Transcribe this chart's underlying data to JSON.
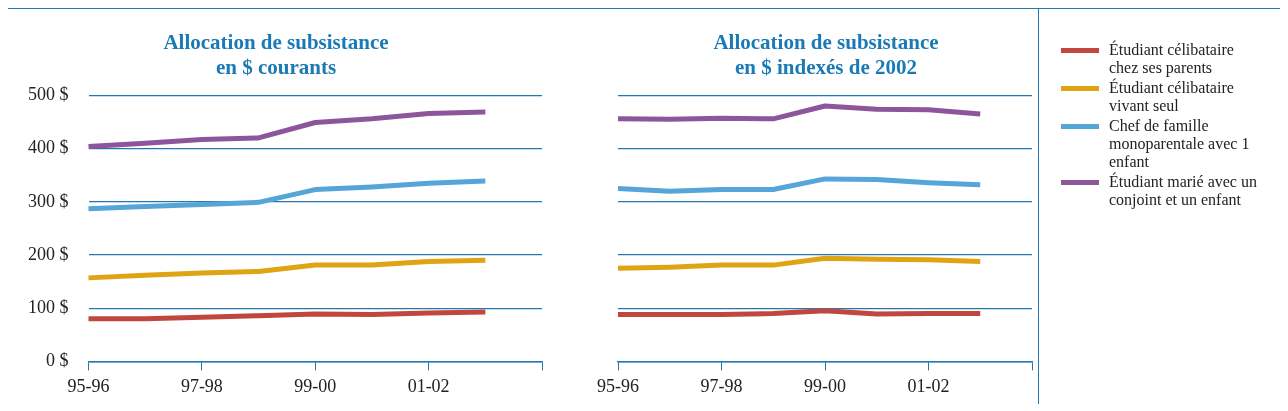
{
  "chart_data": [
    {
      "type": "line",
      "title": "Allocation de subsistance\nen $ courants",
      "categories": [
        "95-96",
        null,
        "97-98",
        null,
        "99-00",
        null,
        "01-02",
        null,
        null
      ],
      "series": [
        {
          "name": "Étudiant célibataire chez ses parents",
          "color": "#c0473f",
          "values": [
            80,
            80,
            83,
            86,
            89,
            88,
            91,
            93,
            null
          ]
        },
        {
          "name": "Étudiant célibataire vivant seul",
          "color": "#dea414",
          "values": [
            157,
            162,
            166,
            169,
            181,
            181,
            188,
            190,
            null
          ]
        },
        {
          "name": "Chef de famille monoparentale avec 1 enfant",
          "color": "#55a5d8",
          "values": [
            287,
            291,
            295,
            299,
            323,
            328,
            335,
            339,
            null
          ]
        },
        {
          "name": "Étudiant marié avec un conjoint  et un enfant",
          "color": "#8c559c",
          "values": [
            404,
            410,
            417,
            420,
            449,
            456,
            466,
            469,
            null
          ]
        }
      ],
      "ylim": [
        0,
        500
      ],
      "yticks": [
        {
          "value": 0,
          "label": "0 $"
        },
        {
          "value": 100,
          "label": "100 $"
        },
        {
          "value": 200,
          "label": "200 $"
        },
        {
          "value": 300,
          "label": "300 $"
        },
        {
          "value": 400,
          "label": "400 $"
        },
        {
          "value": 500,
          "label": "500 $"
        }
      ],
      "grid": "y",
      "marker": "none",
      "line_style": "solid",
      "legend": "right"
    },
    {
      "type": "line",
      "title": "Allocation de subsistance\nen $ indexés de 2002",
      "categories": [
        "95-96",
        null,
        "97-98",
        null,
        "99-00",
        null,
        "01-02",
        null,
        null
      ],
      "series": [
        {
          "color": "#c0473f",
          "values": [
            88,
            88,
            88,
            90,
            95,
            89,
            90,
            90,
            null
          ]
        },
        {
          "color": "#dea414",
          "values": [
            175,
            177,
            181,
            181,
            194,
            192,
            191,
            188,
            null
          ]
        },
        {
          "color": "#55a5d8",
          "values": [
            325,
            320,
            323,
            323,
            343,
            342,
            336,
            332,
            null
          ]
        },
        {
          "color": "#8c559c",
          "values": [
            456,
            455,
            457,
            456,
            480,
            474,
            473,
            465,
            null
          ]
        }
      ],
      "ylim": [
        0,
        500
      ],
      "yticks": [
        {
          "value": 0,
          "label": null
        },
        {
          "value": 100,
          "label": null
        },
        {
          "value": 200,
          "label": null
        },
        {
          "value": 300,
          "label": null
        },
        {
          "value": 400,
          "label": null
        },
        {
          "value": 500,
          "label": null
        }
      ],
      "tick_labels": "x",
      "grid": "y",
      "marker": "none",
      "line_style": "solid"
    }
  ]
}
